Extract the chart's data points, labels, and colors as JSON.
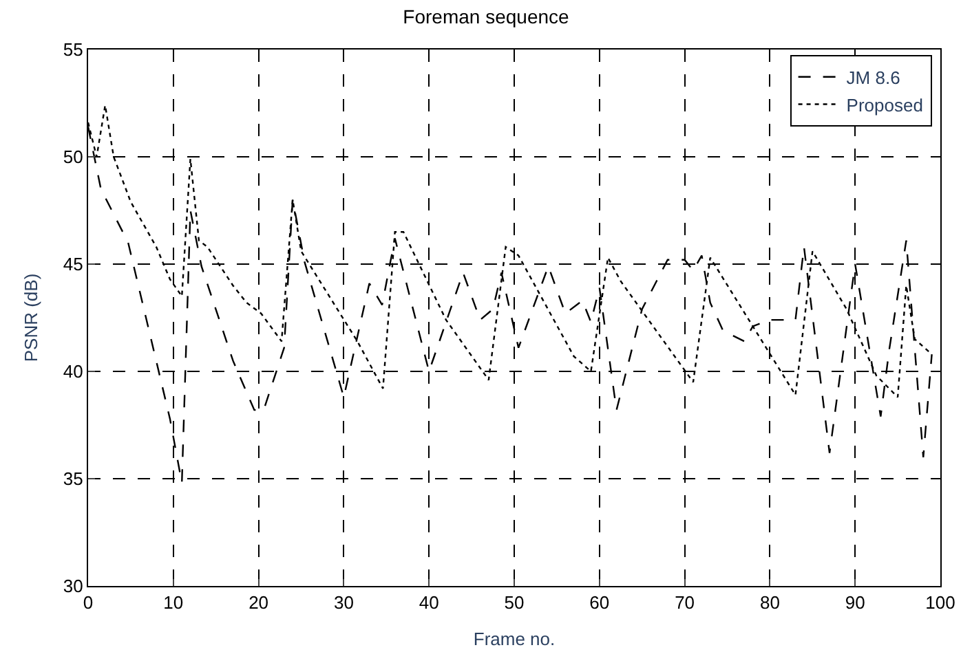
{
  "chart_data": {
    "type": "line",
    "title": "Foreman sequence",
    "xlabel": "Frame no.",
    "ylabel": "PSNR (dB)",
    "xlim": [
      0,
      100
    ],
    "xticks": [
      0,
      10,
      20,
      30,
      40,
      50,
      60,
      70,
      80,
      90,
      100
    ],
    "ylim": [
      30,
      55
    ],
    "yticks": [
      30,
      35,
      40,
      45,
      50,
      55
    ],
    "grid": true,
    "legend": "top right",
    "series": [
      {
        "name": "JM 8.6",
        "color": "#000000",
        "line_style": "dashed",
        "x": [
          0,
          1.5,
          4.7,
          9.6,
          11,
          12,
          13.3,
          17,
          19.5,
          20.6,
          23,
          24,
          25.4,
          30,
          33,
          34.5,
          36,
          40,
          44,
          46,
          47.5,
          48.5,
          50.5,
          54,
          56,
          58,
          59,
          60,
          62,
          65,
          68,
          70,
          71,
          72,
          73,
          74.5,
          77,
          78,
          80,
          83,
          84,
          87,
          90,
          93,
          94,
          96,
          98,
          99
        ],
        "values": [
          51.4,
          48.5,
          46,
          37.8,
          34.8,
          47.5,
          44.9,
          40.5,
          38.2,
          38.2,
          41.1,
          48,
          45.1,
          38.8,
          44.1,
          43.1,
          46.2,
          40,
          44.6,
          42.4,
          42.9,
          44.6,
          41.1,
          44.9,
          42.7,
          43.3,
          42.3,
          43.9,
          38.2,
          42.9,
          45.2,
          45.2,
          44.7,
          45.4,
          43.2,
          41.9,
          41.4,
          42.1,
          42.4,
          42.4,
          45.8,
          36.2,
          45,
          37.9,
          41,
          46.1,
          36,
          40.8
        ]
      },
      {
        "name": "Proposed",
        "color": "#000000",
        "line_style": "dotted",
        "x": [
          0,
          1,
          2,
          3,
          5,
          8,
          9.6,
          11,
          12,
          13,
          14,
          17,
          18.6,
          20.3,
          22.7,
          24,
          25,
          31.6,
          34.6,
          36,
          37,
          42,
          47,
          49,
          50.5,
          57,
          59,
          61,
          62.5,
          71,
          73,
          83,
          85,
          89,
          92.5,
          95,
          96,
          97,
          99
        ],
        "values": [
          51.6,
          50,
          52.4,
          50,
          47.9,
          45.8,
          44.3,
          43.5,
          49.9,
          46.1,
          45.8,
          44,
          43.2,
          42.7,
          41.4,
          48,
          45.6,
          41.4,
          39.2,
          46.5,
          46.5,
          42.4,
          39.6,
          45.8,
          45.4,
          40.7,
          40,
          45.3,
          44.2,
          39.5,
          45.3,
          38.9,
          45.6,
          42.9,
          39.8,
          38.8,
          44,
          41.5,
          40.8
        ]
      }
    ]
  }
}
